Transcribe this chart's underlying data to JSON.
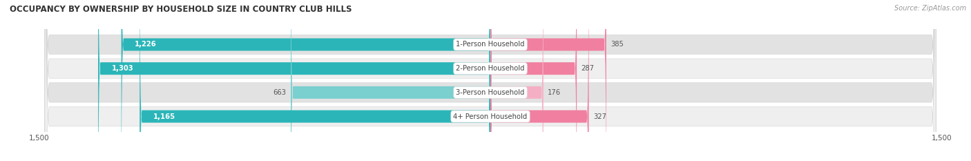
{
  "title": "OCCUPANCY BY OWNERSHIP BY HOUSEHOLD SIZE IN COUNTRY CLUB HILLS",
  "source": "Source: ZipAtlas.com",
  "categories": [
    "1-Person Household",
    "2-Person Household",
    "3-Person Household",
    "4+ Person Household"
  ],
  "owner_values": [
    1226,
    1303,
    663,
    1165
  ],
  "renter_values": [
    385,
    287,
    176,
    327
  ],
  "owner_color": "#2bb5b8",
  "owner_color_light": "#7acfcf",
  "renter_color": "#f07fa0",
  "renter_color_light": "#f5afc4",
  "row_bg_color_dark": "#e2e2e2",
  "row_bg_color_light": "#efefef",
  "xlim": 1500,
  "title_fontsize": 8.5,
  "label_fontsize": 7.2,
  "value_fontsize": 7.2,
  "tick_fontsize": 7.5,
  "source_fontsize": 7.0,
  "light_rows": [
    2
  ]
}
